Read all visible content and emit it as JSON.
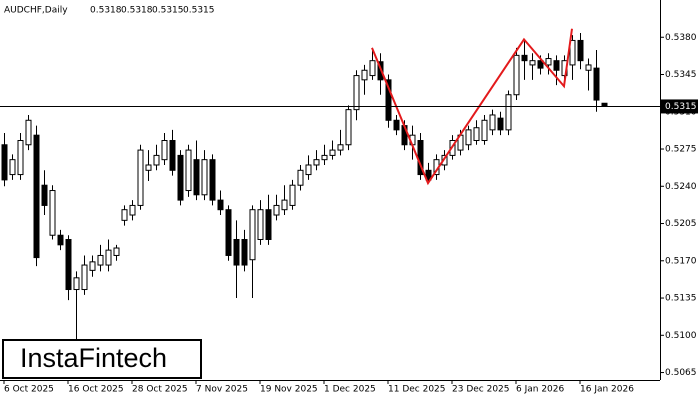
{
  "chart_data": {
    "type": "candlestick",
    "symbol": "AUDCHF,Daily",
    "header_values": [
      0.5318,
      0.5318,
      0.5315,
      0.5315
    ],
    "logo": "InstaFintech",
    "categories": [
      "6 Oct 2025",
      null,
      null,
      null,
      null,
      null,
      null,
      null,
      "16 Oct 2025",
      null,
      null,
      null,
      null,
      null,
      null,
      null,
      "28 Oct 2025",
      null,
      null,
      null,
      null,
      null,
      null,
      null,
      "7 Nov 2025",
      null,
      null,
      null,
      null,
      null,
      null,
      null,
      "19 Nov 2025",
      null,
      null,
      null,
      null,
      null,
      null,
      null,
      "1 Dec 2025",
      null,
      null,
      null,
      null,
      null,
      null,
      null,
      "11 Dec 2025",
      null,
      null,
      null,
      null,
      null,
      null,
      null,
      "23 Dec 2025",
      null,
      null,
      null,
      null,
      null,
      null,
      null,
      "6 Jan 2026",
      null,
      null,
      null,
      null,
      null,
      null,
      null,
      "16 Jan 2026",
      null,
      null,
      null
    ],
    "open": [
      0.5279,
      0.5251,
      0.5251,
      0.5279,
      0.5288,
      0.5241,
      0.5194,
      0.5194,
      0.519,
      0.5143,
      0.5143,
      0.5161,
      0.5166,
      0.5166,
      0.5175,
      0.5208,
      0.5213,
      0.5222,
      0.5255,
      0.526,
      0.5265,
      0.5283,
      0.5269,
      0.5236,
      0.5265,
      0.5232,
      0.5265,
      0.5227,
      0.5218,
      0.519,
      0.519,
      0.5171,
      0.519,
      0.5218,
      0.5213,
      0.5218,
      0.5222,
      0.5241,
      0.5251,
      0.526,
      0.5265,
      0.5269,
      0.5274,
      0.5279,
      0.5312,
      0.534,
      0.5344,
      0.5357,
      0.534,
      0.5302,
      0.5297,
      0.5279,
      0.5283,
      0.5255,
      0.5251,
      0.526,
      0.5269,
      0.5274,
      0.5279,
      0.5283,
      0.5283,
      0.5293,
      0.5304,
      0.5293,
      0.5326,
      0.5363,
      0.5354,
      0.5358,
      0.5354,
      0.5358,
      0.5344,
      0.5354,
      0.5377,
      0.5349,
      0.5351,
      0.5318
    ],
    "high": [
      0.529,
      0.527,
      0.529,
      0.5307,
      0.5297,
      0.5255,
      0.5241,
      0.5199,
      0.5194,
      0.516,
      0.5175,
      0.5175,
      0.5185,
      0.519,
      0.5185,
      0.5222,
      0.5227,
      0.5279,
      0.5274,
      0.5279,
      0.529,
      0.5293,
      0.5274,
      0.5279,
      0.5283,
      0.5274,
      0.527,
      0.5236,
      0.5222,
      0.5208,
      0.5199,
      0.5222,
      0.5227,
      0.5232,
      0.5232,
      0.5241,
      0.5246,
      0.526,
      0.5269,
      0.5274,
      0.5279,
      0.5283,
      0.5293,
      0.5316,
      0.5349,
      0.5354,
      0.537,
      0.5365,
      0.5345,
      0.5307,
      0.5302,
      0.5297,
      0.529,
      0.5262,
      0.527,
      0.5274,
      0.5288,
      0.5293,
      0.5297,
      0.5302,
      0.5307,
      0.5312,
      0.531,
      0.533,
      0.537,
      0.5377,
      0.5365,
      0.5363,
      0.5365,
      0.5363,
      0.5363,
      0.5382,
      0.5384,
      0.536,
      0.5368,
      0.5318
    ],
    "low": [
      0.524,
      0.5246,
      0.5246,
      0.5274,
      0.5165,
      0.5213,
      0.519,
      0.518,
      0.5133,
      0.5096,
      0.5138,
      0.5155,
      0.516,
      0.516,
      0.517,
      0.5203,
      0.5208,
      0.5218,
      0.5245,
      0.5255,
      0.526,
      0.525,
      0.5222,
      0.523,
      0.5227,
      0.5227,
      0.5222,
      0.5213,
      0.517,
      0.5135,
      0.516,
      0.5135,
      0.5185,
      0.5185,
      0.5208,
      0.5213,
      0.5218,
      0.5236,
      0.5246,
      0.5255,
      0.526,
      0.5265,
      0.5269,
      0.5274,
      0.5302,
      0.5326,
      0.534,
      0.5326,
      0.5295,
      0.5288,
      0.5274,
      0.5265,
      0.5246,
      0.5243,
      0.5246,
      0.5255,
      0.5265,
      0.5269,
      0.5274,
      0.5279,
      0.5279,
      0.5288,
      0.5288,
      0.5288,
      0.5321,
      0.534,
      0.534,
      0.5345,
      0.5345,
      0.5335,
      0.5335,
      0.534,
      0.535,
      0.533,
      0.531,
      0.5315
    ],
    "close": [
      0.5246,
      0.5265,
      0.5283,
      0.5302,
      0.5173,
      0.5222,
      0.5236,
      0.5185,
      0.5143,
      0.5154,
      0.5166,
      0.5169,
      0.5175,
      0.518,
      0.5182,
      0.5218,
      0.5222,
      0.5274,
      0.526,
      0.5269,
      0.5283,
      0.5255,
      0.5227,
      0.5274,
      0.5232,
      0.5265,
      0.5227,
      0.5218,
      0.5175,
      0.5166,
      0.5166,
      0.5218,
      0.5218,
      0.519,
      0.5222,
      0.5227,
      0.5241,
      0.5255,
      0.526,
      0.5265,
      0.5269,
      0.5274,
      0.5279,
      0.5312,
      0.5344,
      0.5349,
      0.5358,
      0.534,
      0.5302,
      0.5293,
      0.5279,
      0.5288,
      0.5251,
      0.5246,
      0.5265,
      0.5269,
      0.5283,
      0.5288,
      0.5293,
      0.5295,
      0.5302,
      0.5307,
      0.5293,
      0.5326,
      0.5363,
      0.5358,
      0.5358,
      0.5351,
      0.536,
      0.5349,
      0.5358,
      0.5377,
      0.5358,
      0.5354,
      0.5321,
      0.5315
    ],
    "up_color": "#ffffff",
    "down_color": "#000000",
    "current_price": 0.5315,
    "pattern": {
      "color": "#e31a1c",
      "x": [
        46,
        53,
        65,
        70,
        71
      ],
      "y": [
        0.537,
        0.5243,
        0.5378,
        0.5334,
        0.5388
      ]
    },
    "ylim": [
      0.5058,
      0.5415
    ],
    "yticks": [
      {
        "value": 0.538,
        "label": "0.5380"
      },
      {
        "value": 0.5345,
        "label": "0.5345"
      },
      {
        "value": 0.531,
        "label": "0.5310"
      },
      {
        "value": 0.5275,
        "label": "0.5275"
      },
      {
        "value": 0.524,
        "label": "0.5240"
      },
      {
        "value": 0.5205,
        "label": "0.5205"
      },
      {
        "value": 0.517,
        "label": "0.5170"
      },
      {
        "value": 0.5135,
        "label": "0.5135"
      },
      {
        "value": 0.51,
        "label": "0.5100"
      },
      {
        "value": 0.5065,
        "label": "0.5065"
      }
    ]
  }
}
